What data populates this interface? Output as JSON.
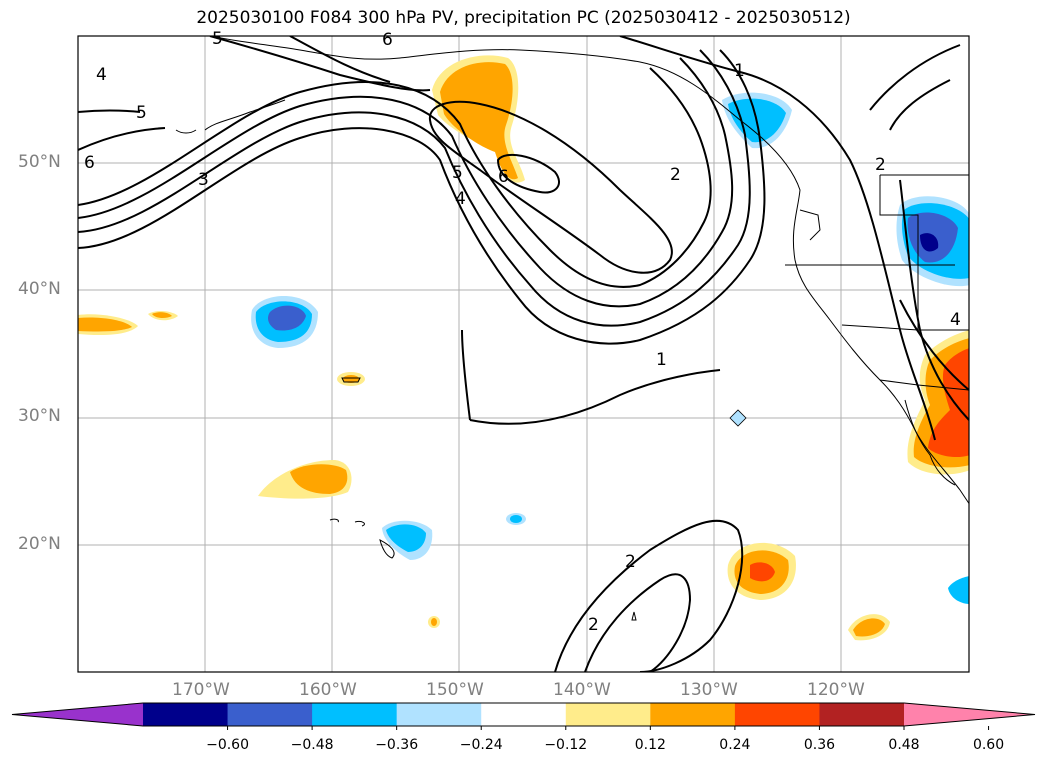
{
  "title": "2025030100 F084 300 hPa PV, precipitation PC (2025030412 - 2025030512)",
  "lat_labels": [
    "50°N",
    "40°N",
    "30°N",
    "20°N"
  ],
  "lon_labels": [
    "170°W",
    "160°W",
    "150°W",
    "140°W",
    "130°W",
    "120°W"
  ],
  "contour_labels": [
    "5",
    "4",
    "6",
    "5",
    "6",
    "3",
    "5",
    "4",
    "6",
    "1",
    "2",
    "2",
    "1",
    "2",
    "2",
    "4"
  ],
  "colorbar": {
    "ticks": [
      "−0.60",
      "−0.48",
      "−0.36",
      "−0.24",
      "−0.12",
      "0.12",
      "0.24",
      "0.36",
      "0.48",
      "0.60"
    ],
    "colors": [
      "#9932cc",
      "#00008b",
      "#3a5fcd",
      "#00bfff",
      "#b0e2ff",
      "#ffffff",
      "#ffec8b",
      "#ffa500",
      "#ff4500",
      "#b22222",
      "#ff82ab"
    ]
  },
  "shading_colors": {
    "neg_strong": "#00008b",
    "neg_med": "#3a5fcd",
    "neg": "#00bfff",
    "neg_light": "#b0e2ff",
    "pos_light": "#ffec8b",
    "pos": "#ffa500",
    "pos_med": "#ff4500",
    "pos_strong": "#b22222"
  }
}
